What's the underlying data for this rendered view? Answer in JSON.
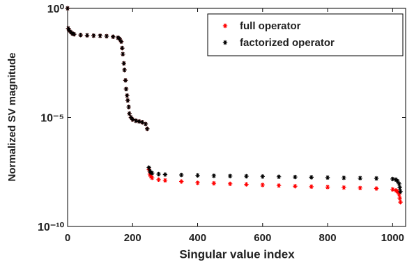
{
  "chart_data": {
    "type": "scatter",
    "y_label": "Normalized SV magnitude",
    "x_label": "Singular value index",
    "xlim": [
      0,
      1040
    ],
    "xticks": [
      0,
      200,
      400,
      600,
      800,
      1000
    ],
    "ylim": [
      1e-10,
      1
    ],
    "yticks": [
      {
        "value": 1,
        "label": "10⁰"
      },
      {
        "value": 1e-05,
        "label": "10⁻⁵"
      },
      {
        "value": 1e-10,
        "label": "10⁻¹⁰"
      }
    ],
    "log_y": true,
    "legend": "upper right",
    "marker": "*",
    "x": [
      0,
      2,
      5,
      10,
      15,
      20,
      40,
      60,
      80,
      100,
      120,
      140,
      155,
      160,
      165,
      168,
      170,
      173,
      175,
      178,
      180,
      183,
      185,
      188,
      190,
      195,
      200,
      210,
      220,
      230,
      240,
      245,
      250,
      253,
      256,
      260,
      280,
      300,
      350,
      400,
      450,
      500,
      550,
      600,
      650,
      700,
      750,
      800,
      850,
      900,
      950,
      1000,
      1010,
      1015,
      1020,
      1022,
      1024
    ],
    "series": [
      {
        "name": "full operator",
        "color": "#ff0000",
        "values": [
          1,
          0.12,
          0.1,
          0.08,
          0.07,
          0.065,
          0.06,
          0.058,
          0.056,
          0.055,
          0.053,
          0.05,
          0.045,
          0.04,
          0.03,
          0.015,
          0.008,
          0.003,
          0.0015,
          0.0005,
          0.0002,
          0.0001,
          6e-05,
          3e-05,
          1.5e-05,
          1e-05,
          8e-06,
          7e-06,
          6.5e-06,
          6e-06,
          5e-06,
          3e-06,
          4e-08,
          2.5e-08,
          2e-08,
          1.7e-08,
          1.4e-08,
          1.3e-08,
          1.15e-08,
          1e-08,
          9.5e-09,
          9e-09,
          8.5e-09,
          8e-09,
          7.5e-09,
          7e-09,
          6.7e-09,
          6.4e-09,
          6.1e-09,
          5.8e-09,
          5.5e-09,
          5e-09,
          4.5e-09,
          4e-09,
          3e-09,
          2e-09,
          1.3e-09
        ]
      },
      {
        "name": "factorized operator",
        "color": "#000000",
        "values": [
          1,
          0.12,
          0.1,
          0.08,
          0.07,
          0.065,
          0.06,
          0.058,
          0.056,
          0.055,
          0.053,
          0.05,
          0.045,
          0.04,
          0.03,
          0.015,
          0.008,
          0.003,
          0.0015,
          0.0005,
          0.0002,
          0.0001,
          6e-05,
          3e-05,
          1.5e-05,
          1e-05,
          8e-06,
          7e-06,
          6.5e-06,
          6e-06,
          5e-06,
          3e-06,
          5e-08,
          3.5e-08,
          3e-08,
          2.8e-08,
          2.5e-08,
          2.4e-08,
          2.3e-08,
          2.2e-08,
          2.1e-08,
          2.05e-08,
          2e-08,
          1.95e-08,
          1.9e-08,
          1.85e-08,
          1.8e-08,
          1.75e-08,
          1.7e-08,
          1.65e-08,
          1.6e-08,
          1.5e-08,
          1.4e-08,
          1.2e-08,
          9e-09,
          6e-09,
          4e-09
        ]
      }
    ]
  }
}
